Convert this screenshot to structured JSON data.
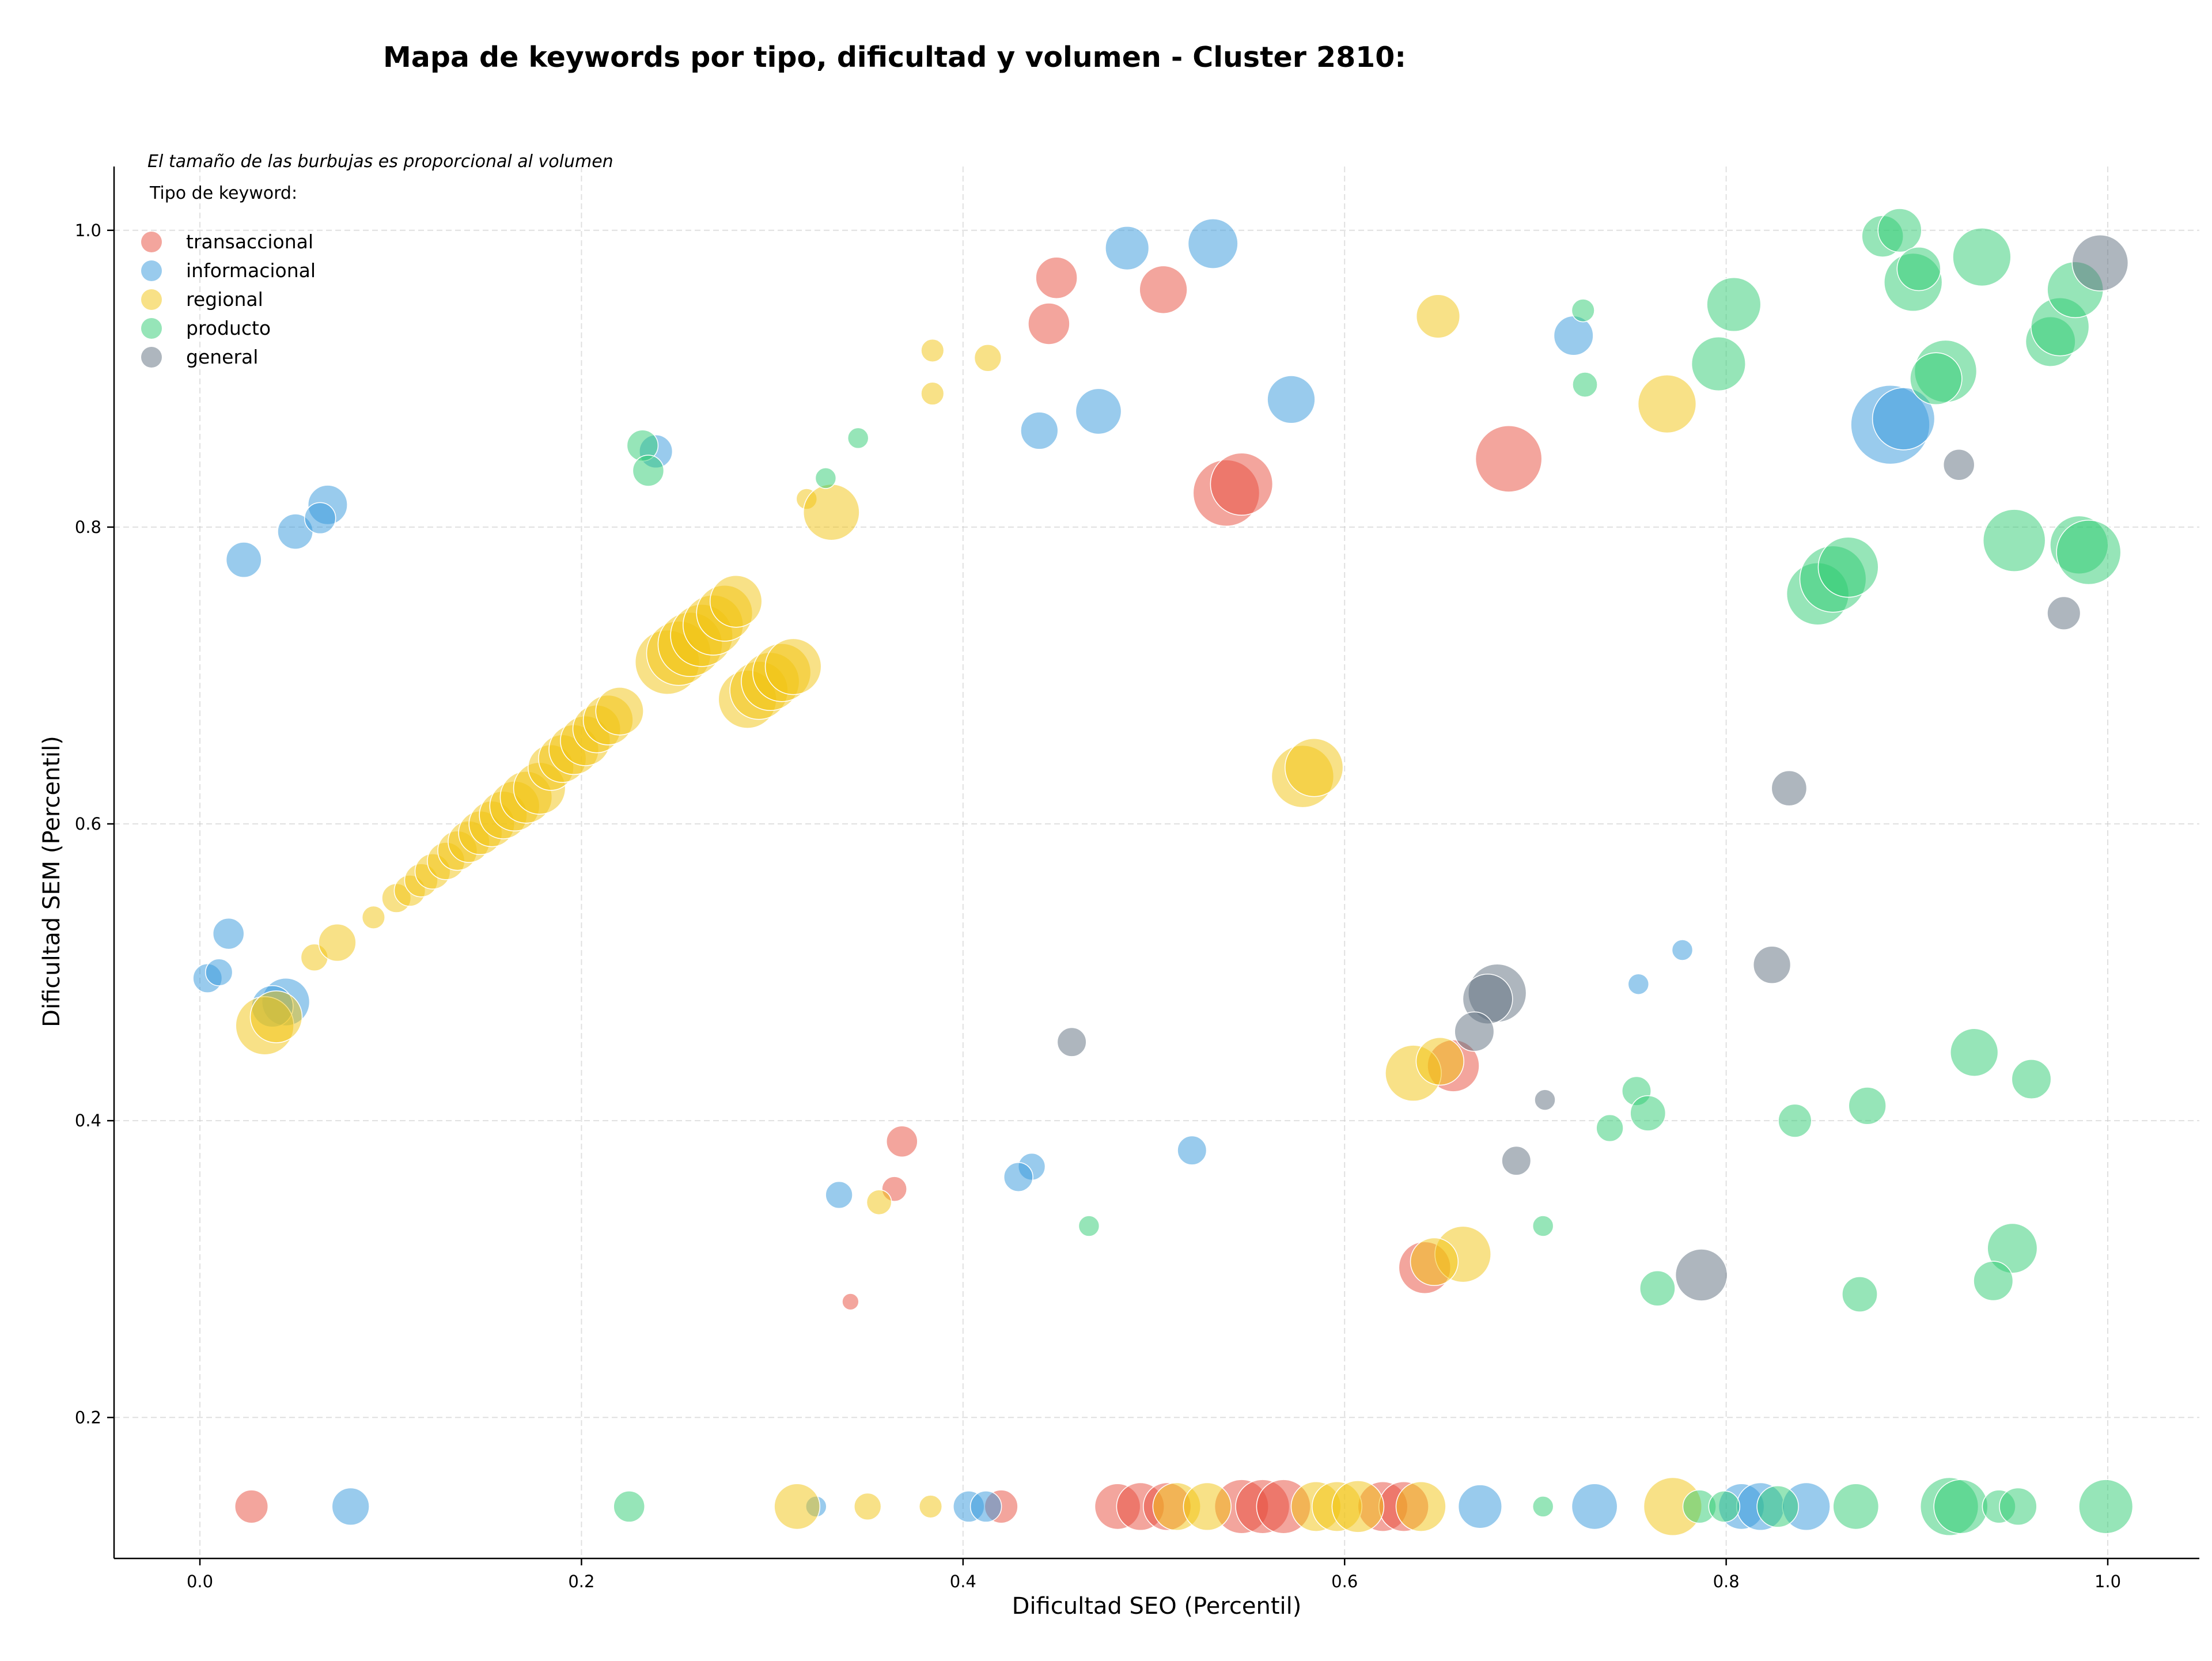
{
  "chart_data": {
    "type": "scatter",
    "title": "Mapa de keywords por tipo, dificultad y volumen - Cluster 2810:",
    "xlabel": "Dificultad SEO (Percentil)",
    "ylabel": "Dificultad SEM (Percentil)",
    "xlim": [
      -0.045,
      1.048
    ],
    "ylim": [
      0.105,
      1.043
    ],
    "xticks": [
      0.0,
      0.2,
      0.4,
      0.6,
      0.8,
      1.0
    ],
    "xtick_labels": [
      "0.0",
      "0.2",
      "0.4",
      "0.6",
      "0.8",
      "1.0"
    ],
    "yticks": [
      0.2,
      0.4,
      0.6,
      0.8,
      1.0
    ],
    "ytick_labels": [
      "0.2",
      "0.4",
      "0.6",
      "0.8",
      "1.0"
    ],
    "grid": true,
    "legend": {
      "placement": "top-left",
      "note": "El tamaño de las burbujas es proporcional al volumen",
      "title": "Tipo de keyword:"
    },
    "series": [
      {
        "name": "transaccional",
        "color": "#e74c3c",
        "points": [
          [
            0.445,
            0.937,
            2
          ],
          [
            0.449,
            0.968,
            2
          ],
          [
            0.505,
            0.96,
            2.3
          ],
          [
            0.538,
            0.823,
            3.2
          ],
          [
            0.546,
            0.829,
            3
          ],
          [
            0.686,
            0.846,
            3.2
          ],
          [
            0.368,
            0.386,
            1.5
          ],
          [
            0.364,
            0.354,
            1.2
          ],
          [
            0.341,
            0.278,
            0.8
          ],
          [
            0.642,
            0.301,
            2.5
          ],
          [
            0.657,
            0.437,
            2.5
          ],
          [
            0.027,
            0.14,
            1.6
          ],
          [
            0.42,
            0.14,
            1.6
          ],
          [
            0.481,
            0.14,
            2.2
          ],
          [
            0.493,
            0.14,
            2.3
          ],
          [
            0.507,
            0.14,
            2.3
          ],
          [
            0.546,
            0.14,
            2.6
          ],
          [
            0.557,
            0.14,
            2.6
          ],
          [
            0.568,
            0.14,
            2.6
          ],
          [
            0.62,
            0.14,
            2.4
          ],
          [
            0.631,
            0.14,
            2.4
          ]
        ]
      },
      {
        "name": "informacional",
        "color": "#3498db",
        "points": [
          [
            0.023,
            0.778,
            1.7
          ],
          [
            0.05,
            0.797,
            1.7
          ],
          [
            0.067,
            0.815,
            1.9
          ],
          [
            0.063,
            0.806,
            1.5
          ],
          [
            0.239,
            0.851,
            1.6
          ],
          [
            0.486,
            0.988,
            2.1
          ],
          [
            0.531,
            0.991,
            2.4
          ],
          [
            0.44,
            0.865,
            1.8
          ],
          [
            0.471,
            0.878,
            2.2
          ],
          [
            0.572,
            0.886,
            2.3
          ],
          [
            0.72,
            0.929,
            1.9
          ],
          [
            0.886,
            0.869,
            3.8
          ],
          [
            0.893,
            0.873,
            3
          ],
          [
            0.004,
            0.496,
            1.4
          ],
          [
            0.01,
            0.5,
            1.3
          ],
          [
            0.015,
            0.526,
            1.5
          ],
          [
            0.045,
            0.48,
            2.3
          ],
          [
            0.038,
            0.477,
            2
          ],
          [
            0.335,
            0.35,
            1.3
          ],
          [
            0.436,
            0.369,
            1.3
          ],
          [
            0.429,
            0.362,
            1.4
          ],
          [
            0.52,
            0.38,
            1.4
          ],
          [
            0.754,
            0.492,
            1
          ],
          [
            0.777,
            0.515,
            1
          ],
          [
            0.079,
            0.14,
            1.8
          ],
          [
            0.323,
            0.14,
            1
          ],
          [
            0.403,
            0.14,
            1.5
          ],
          [
            0.412,
            0.14,
            1.5
          ],
          [
            0.671,
            0.14,
            2.1
          ],
          [
            0.731,
            0.14,
            2.2
          ],
          [
            0.808,
            0.14,
            2.2
          ],
          [
            0.818,
            0.14,
            2.3
          ],
          [
            0.842,
            0.14,
            2.3
          ]
        ]
      },
      {
        "name": "regional",
        "color": "#f1c40f",
        "points": [
          [
            0.384,
            0.919,
            1.1
          ],
          [
            0.413,
            0.914,
            1.3
          ],
          [
            0.384,
            0.89,
            1.1
          ],
          [
            0.318,
            0.819,
            1
          ],
          [
            0.331,
            0.81,
            2.7
          ],
          [
            0.649,
            0.942,
            2.1
          ],
          [
            0.769,
            0.883,
            2.8
          ],
          [
            0.06,
            0.51,
            1.3
          ],
          [
            0.072,
            0.52,
            1.8
          ],
          [
            0.091,
            0.537,
            1.1
          ],
          [
            0.103,
            0.55,
            1.4
          ],
          [
            0.11,
            0.555,
            1.5
          ],
          [
            0.116,
            0.562,
            1.6
          ],
          [
            0.122,
            0.568,
            1.7
          ],
          [
            0.129,
            0.575,
            1.8
          ],
          [
            0.135,
            0.582,
            1.9
          ],
          [
            0.141,
            0.588,
            2
          ],
          [
            0.147,
            0.594,
            2.1
          ],
          [
            0.153,
            0.6,
            2.2
          ],
          [
            0.159,
            0.606,
            2.3
          ],
          [
            0.165,
            0.612,
            2.4
          ],
          [
            0.171,
            0.618,
            2.5
          ],
          [
            0.178,
            0.624,
            2.5
          ],
          [
            0.184,
            0.638,
            2.2
          ],
          [
            0.19,
            0.644,
            2.3
          ],
          [
            0.196,
            0.65,
            2.4
          ],
          [
            0.202,
            0.656,
            2.4
          ],
          [
            0.208,
            0.664,
            2.3
          ],
          [
            0.214,
            0.67,
            2.4
          ],
          [
            0.22,
            0.676,
            2.3
          ],
          [
            0.245,
            0.709,
            3.1
          ],
          [
            0.251,
            0.715,
            3.1
          ],
          [
            0.257,
            0.721,
            3.1
          ],
          [
            0.263,
            0.727,
            3
          ],
          [
            0.269,
            0.734,
            2.9
          ],
          [
            0.275,
            0.742,
            2.7
          ],
          [
            0.281,
            0.75,
            2.5
          ],
          [
            0.287,
            0.684,
            2.8
          ],
          [
            0.293,
            0.69,
            2.8
          ],
          [
            0.299,
            0.696,
            2.8
          ],
          [
            0.305,
            0.702,
            2.8
          ],
          [
            0.311,
            0.706,
            2.7
          ],
          [
            0.034,
            0.464,
            2.8
          ],
          [
            0.04,
            0.47,
            2.5
          ],
          [
            0.578,
            0.632,
            3
          ],
          [
            0.584,
            0.638,
            2.8
          ],
          [
            0.636,
            0.432,
            2.7
          ],
          [
            0.65,
            0.44,
            2.3
          ],
          [
            0.662,
            0.31,
            2.7
          ],
          [
            0.647,
            0.305,
            2.3
          ],
          [
            0.356,
            0.345,
            1.2
          ],
          [
            0.313,
            0.14,
            2.2
          ],
          [
            0.35,
            0.14,
            1.3
          ],
          [
            0.383,
            0.14,
            1.1
          ],
          [
            0.512,
            0.14,
            2.3
          ],
          [
            0.528,
            0.14,
            2.3
          ],
          [
            0.585,
            0.14,
            2.4
          ],
          [
            0.596,
            0.14,
            2.4
          ],
          [
            0.607,
            0.14,
            2.5
          ],
          [
            0.64,
            0.14,
            2.4
          ],
          [
            0.772,
            0.14,
            2.8
          ]
        ]
      },
      {
        "name": "producto",
        "color": "#2ecc71",
        "points": [
          [
            0.232,
            0.855,
            1.5
          ],
          [
            0.235,
            0.838,
            1.5
          ],
          [
            0.328,
            0.833,
            1
          ],
          [
            0.345,
            0.86,
            1
          ],
          [
            0.725,
            0.946,
            1.1
          ],
          [
            0.726,
            0.896,
            1.2
          ],
          [
            0.804,
            0.95,
            2.6
          ],
          [
            0.796,
            0.91,
            2.6
          ],
          [
            0.882,
            0.996,
            2
          ],
          [
            0.891,
            1,
            2.1
          ],
          [
            0.898,
            0.965,
            2.8
          ],
          [
            0.901,
            0.974,
            2.1
          ],
          [
            0.934,
            0.982,
            2.8
          ],
          [
            0.915,
            0.905,
            3
          ],
          [
            0.91,
            0.9,
            2.5
          ],
          [
            0.97,
            0.925,
            2.4
          ],
          [
            0.975,
            0.935,
            2.8
          ],
          [
            0.983,
            0.96,
            2.7
          ],
          [
            0.848,
            0.755,
            3
          ],
          [
            0.856,
            0.765,
            3.2
          ],
          [
            0.864,
            0.773,
            2.9
          ],
          [
            0.951,
            0.791,
            3
          ],
          [
            0.985,
            0.788,
            2.8
          ],
          [
            0.99,
            0.783,
            3.1
          ],
          [
            0.466,
            0.329,
            1
          ],
          [
            0.704,
            0.329,
            1
          ],
          [
            0.739,
            0.395,
            1.3
          ],
          [
            0.753,
            0.42,
            1.4
          ],
          [
            0.759,
            0.405,
            1.7
          ],
          [
            0.764,
            0.287,
            1.7
          ],
          [
            0.836,
            0.4,
            1.6
          ],
          [
            0.874,
            0.41,
            1.8
          ],
          [
            0.87,
            0.283,
            1.7
          ],
          [
            0.93,
            0.446,
            2.3
          ],
          [
            0.95,
            0.314,
            2.4
          ],
          [
            0.96,
            0.428,
            1.9
          ],
          [
            0.94,
            0.292,
            1.9
          ],
          [
            0.225,
            0.14,
            1.5
          ],
          [
            0.704,
            0.14,
            1
          ],
          [
            0.786,
            0.14,
            1.6
          ],
          [
            0.799,
            0.14,
            1.5
          ],
          [
            0.827,
            0.14,
            2
          ],
          [
            0.868,
            0.14,
            2.2
          ],
          [
            0.917,
            0.14,
            2.8
          ],
          [
            0.923,
            0.14,
            2.6
          ],
          [
            0.943,
            0.14,
            1.6
          ],
          [
            0.953,
            0.14,
            1.8
          ],
          [
            0.999,
            0.14,
            2.6
          ]
        ]
      },
      {
        "name": "general",
        "color": "#5d6d7e",
        "points": [
          [
            0.996,
            0.978,
            2.7
          ],
          [
            0.922,
            0.842,
            1.5
          ],
          [
            0.977,
            0.742,
            1.6
          ],
          [
            0.833,
            0.624,
            1.7
          ],
          [
            0.457,
            0.453,
            1.4
          ],
          [
            0.68,
            0.486,
            2.8
          ],
          [
            0.675,
            0.482,
            2.4
          ],
          [
            0.668,
            0.46,
            1.9
          ],
          [
            0.705,
            0.414,
            1
          ],
          [
            0.824,
            0.505,
            1.8
          ],
          [
            0.69,
            0.373,
            1.4
          ],
          [
            0.787,
            0.296,
            2.5
          ]
        ]
      }
    ]
  }
}
